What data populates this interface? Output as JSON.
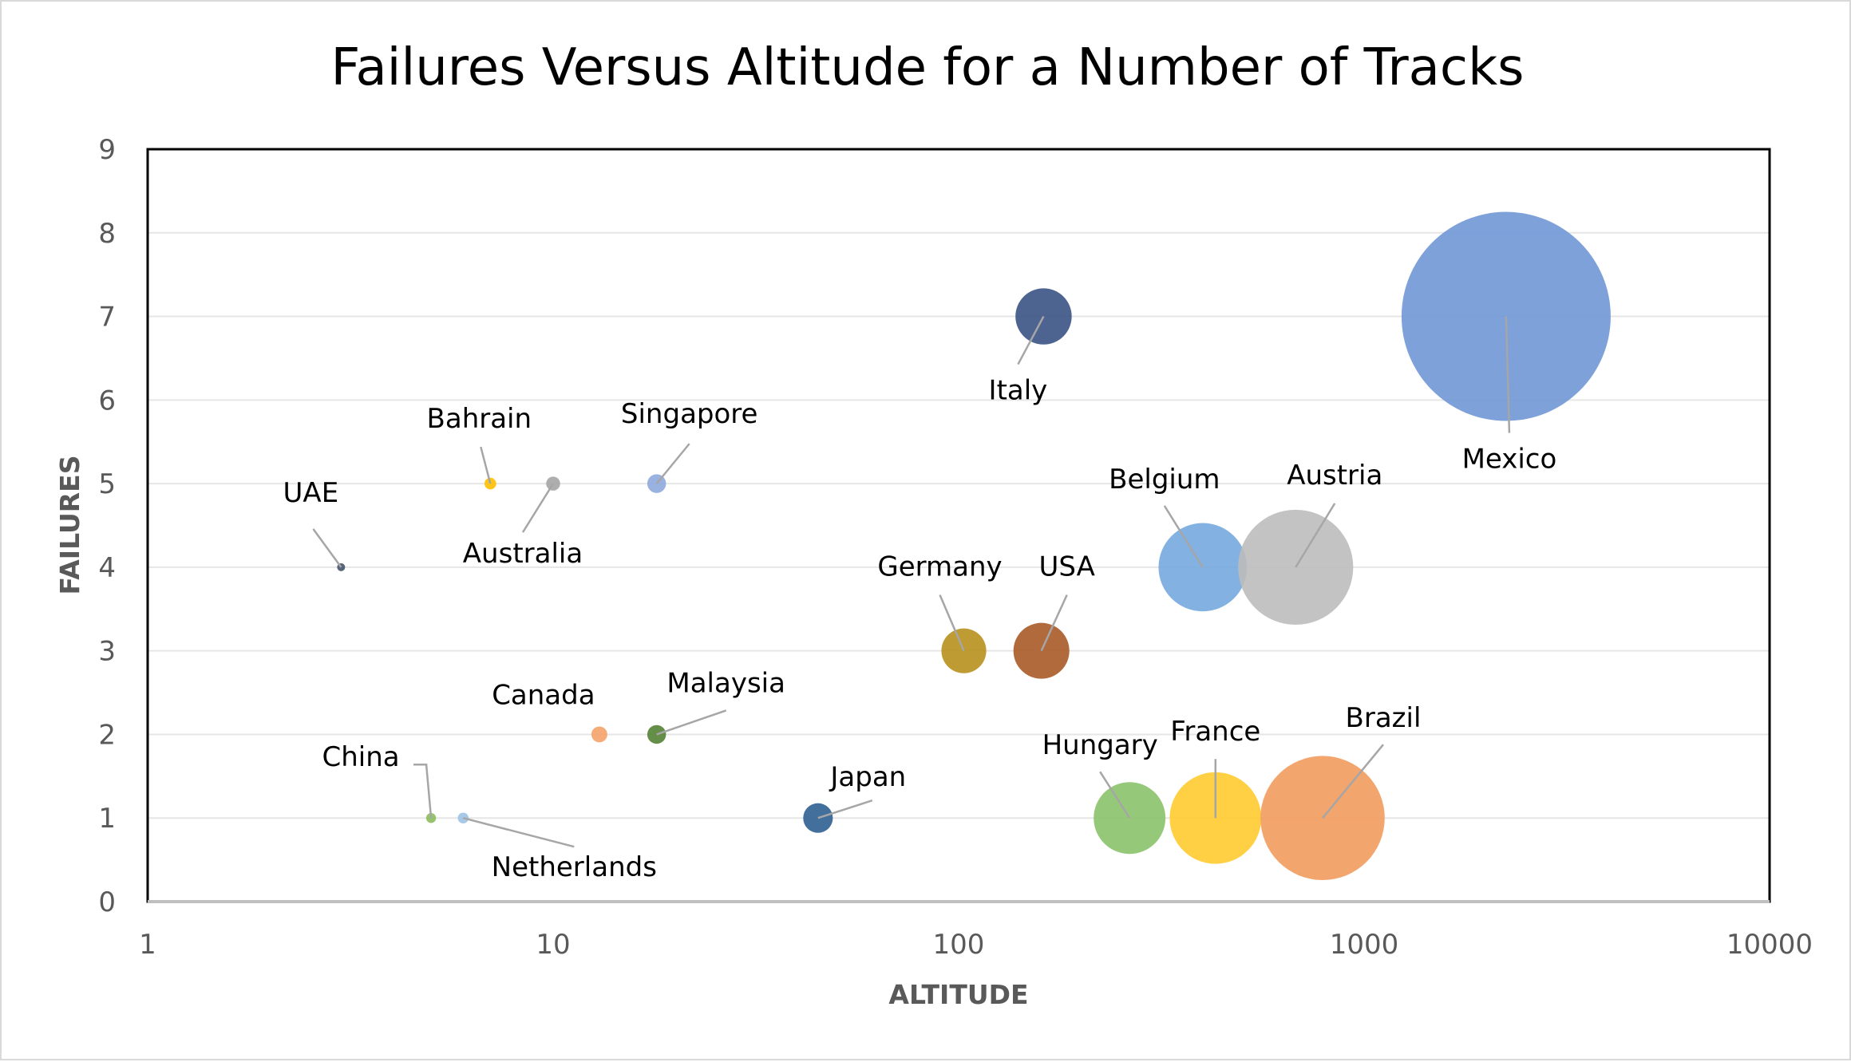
{
  "chart_data": {
    "type": "bubble",
    "title": "Failures Versus Altitude for a Number of Tracks",
    "xlabel": "ALTITUDE",
    "ylabel": "FAILURES",
    "xscale": "log",
    "xlim": [
      1,
      10000
    ],
    "ylim": [
      0,
      9
    ],
    "xticks": [
      1,
      10,
      100,
      1000,
      10000
    ],
    "xtick_labels": [
      "1",
      "10",
      "100",
      "1000",
      "10000"
    ],
    "yticks": [
      0,
      1,
      2,
      3,
      4,
      5,
      6,
      7,
      8,
      9
    ],
    "ytick_labels": [
      "0",
      "1",
      "2",
      "3",
      "4",
      "5",
      "6",
      "7",
      "8",
      "9"
    ],
    "grid": "horizontal",
    "legend": "none",
    "points": [
      {
        "label": "UAE",
        "x": 3,
        "y": 4,
        "size": 3,
        "color": "#44546a"
      },
      {
        "label": "Bahrain",
        "x": 7,
        "y": 5,
        "size": 7,
        "color": "#ffc000"
      },
      {
        "label": "Australia",
        "x": 10,
        "y": 5,
        "size": 10,
        "color": "#a5a5a5"
      },
      {
        "label": "Singapore",
        "x": 18,
        "y": 5,
        "size": 18,
        "color": "#8faadc"
      },
      {
        "label": "China",
        "x": 5,
        "y": 1,
        "size": 5,
        "color": "#8bbd5c"
      },
      {
        "label": "Netherlands",
        "x": 6,
        "y": 1,
        "size": 6,
        "color": "#9dc3e6"
      },
      {
        "label": "Canada",
        "x": 13,
        "y": 2,
        "size": 13,
        "color": "#f4a36a"
      },
      {
        "label": "Malaysia",
        "x": 18,
        "y": 2,
        "size": 18,
        "color": "#548235"
      },
      {
        "label": "Japan",
        "x": 45,
        "y": 1,
        "size": 45,
        "color": "#2f5f92"
      },
      {
        "label": "Germany",
        "x": 103,
        "y": 3,
        "size": 103,
        "color": "#b8901e"
      },
      {
        "label": "USA",
        "x": 160,
        "y": 3,
        "size": 160,
        "color": "#a95a26"
      },
      {
        "label": "Italy",
        "x": 162,
        "y": 7,
        "size": 162,
        "color": "#3b5384"
      },
      {
        "label": "Hungary",
        "x": 264,
        "y": 1,
        "size": 264,
        "color": "#8bc26a"
      },
      {
        "label": "France",
        "x": 430,
        "y": 1,
        "size": 430,
        "color": "#ffcb2f"
      },
      {
        "label": "Belgium",
        "x": 400,
        "y": 4,
        "size": 400,
        "color": "#74a9df"
      },
      {
        "label": "Austria",
        "x": 678,
        "y": 4,
        "size": 678,
        "color": "#bdbdbd"
      },
      {
        "label": "Brazil",
        "x": 790,
        "y": 1,
        "size": 790,
        "color": "#f29b5e"
      },
      {
        "label": "Mexico",
        "x": 2240,
        "y": 7,
        "size": 2240,
        "color": "#7097d6"
      }
    ]
  }
}
